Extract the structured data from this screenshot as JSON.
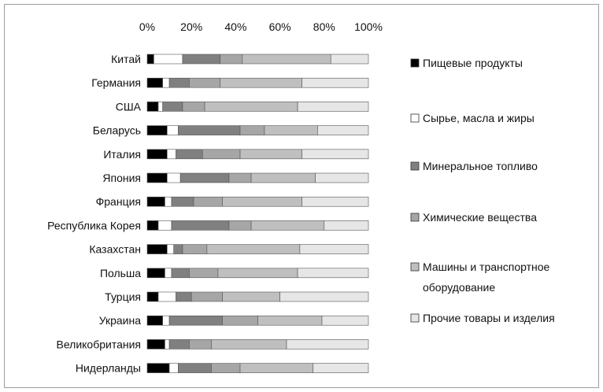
{
  "chart_data": {
    "type": "bar",
    "orientation": "horizontal",
    "stacked": "percent",
    "xlim": [
      0,
      100
    ],
    "x_ticks": [
      "0%",
      "20%",
      "40%",
      "60%",
      "80%",
      "100%"
    ],
    "grid": false,
    "legend_position": "right",
    "categories": [
      "Китай",
      "Германия",
      "США",
      "Беларусь",
      "Италия",
      "Япония",
      "Франция",
      "Республика Корея",
      "Казахстан",
      "Польша",
      "Турция",
      "Украина",
      "Великобритания",
      "Нидерланды"
    ],
    "series": [
      {
        "name": "Пищевые продукты",
        "color": "#000000",
        "values": [
          3,
          7,
          5,
          9,
          9,
          9,
          8,
          5,
          9,
          8,
          5,
          7,
          8,
          10
        ]
      },
      {
        "name": "Сырье, масла и жиры",
        "color": "#ffffff",
        "values": [
          13,
          3,
          2,
          5,
          4,
          6,
          3,
          6,
          3,
          3,
          8,
          3,
          2,
          4
        ]
      },
      {
        "name": "Минеральное топливо",
        "color": "#808080",
        "values": [
          17,
          9,
          9,
          28,
          12,
          22,
          10,
          26,
          4,
          8,
          7,
          24,
          9,
          15
        ]
      },
      {
        "name": "Химические вещества",
        "color": "#a6a6a6",
        "values": [
          10,
          14,
          10,
          11,
          17,
          10,
          13,
          10,
          11,
          13,
          14,
          16,
          10,
          13
        ]
      },
      {
        "name": "Машины и транспортное оборудование",
        "color": "#bfbfbf",
        "values": [
          40,
          37,
          42,
          24,
          28,
          29,
          36,
          33,
          42,
          36,
          26,
          29,
          34,
          33
        ]
      },
      {
        "name": "Прочие товары и изделия",
        "color": "#e6e6e6",
        "values": [
          17,
          30,
          32,
          23,
          30,
          24,
          30,
          20,
          31,
          32,
          40,
          21,
          37,
          25
        ]
      }
    ]
  }
}
